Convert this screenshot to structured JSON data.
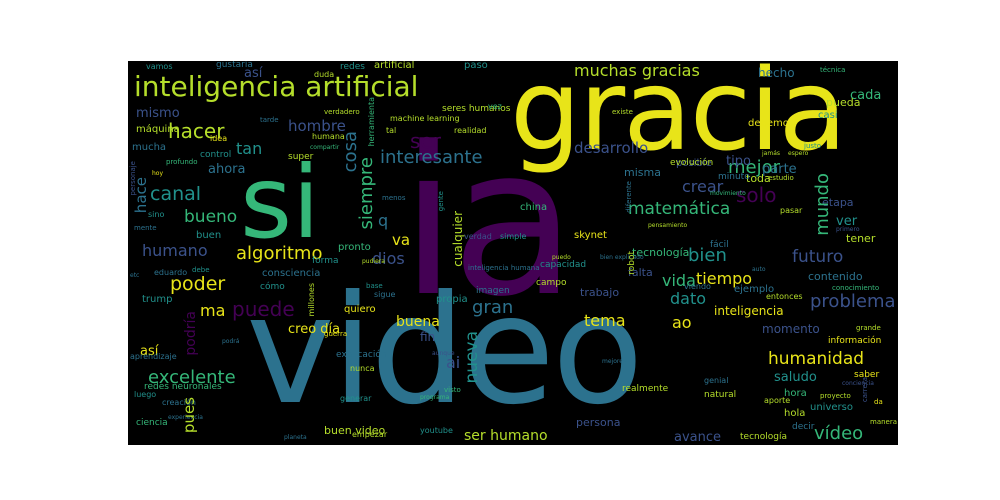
{
  "wordcloud": {
    "background": "#000000",
    "palette": {
      "purple": "#440154",
      "indigo": "#3b528b",
      "teal": "#2c728e",
      "cyan": "#21918c",
      "green": "#35b779",
      "lime": "#5ec962",
      "yellow": "#e8e419",
      "pale": "#b5de2b"
    },
    "words": {
      "ia": "ia",
      "video": "video",
      "gracia": "gracia",
      "si": "si",
      "inteligencia_artificial": "inteligencia artificial",
      "muchas_gracias": "muchas gracias",
      "hacer": "hacer",
      "ser": "ser",
      "interesante": "interesante",
      "desarrollo": "desarrollo",
      "canal": "canal",
      "bueno": "bueno",
      "algoritmo": "algoritmo",
      "dios": "dios",
      "humano": "humano",
      "poder": "poder",
      "puede": "puede",
      "matematica": "matemática",
      "solo": "solo",
      "mejor": "mejor",
      "crear": "crear",
      "mundo": "mundo",
      "futuro": "futuro",
      "bien": "bien",
      "tiempo": "tiempo",
      "vida": "vida",
      "problema": "problema",
      "humanidad": "humanidad",
      "excelente": "excelente",
      "nueva": "nueva",
      "gran": "gran",
      "tema": "tema",
      "ao": "ao",
      "dato": "dato",
      "buena": "buena",
      "video2": "vídeo",
      "saludo": "saludo",
      "avance": "avance",
      "ser_humano": "ser humano",
      "ai": "ai",
      "pues": "pues",
      "podria": "podría",
      "creo_dia": "creo día",
      "ma": "ma",
      "hace": "hace",
      "mismo": "mismo",
      "hombre": "hombre",
      "tan": "tan",
      "cosa": "cosa",
      "siempre": "siempre",
      "ahora": "ahora",
      "va": "va",
      "q": "q",
      "hecho": "hecho",
      "cada": "cada",
      "asi": "así",
      "asi2": "así",
      "tecnologia": "tecnología",
      "tipo": "tipo",
      "parte": "parte",
      "inteligencia": "inteligencia",
      "momento": "momento",
      "contenido": "contenido",
      "trabajo": "trabajo",
      "fin": "fin",
      "persona": "persona",
      "ver": "ver",
      "pueda": "pueda",
      "casi": "casi",
      "debemos": "debemos",
      "toda": "toda",
      "etapa": "etapa",
      "tener": "tener",
      "posible": "posible",
      "misma": "misma",
      "evolucion": "evolución",
      "minuto": "minuto",
      "falta": "falta",
      "facil": "fácil",
      "cualquier": "cualquier",
      "skynet": "skynet",
      "china": "china",
      "verdad": "verdad",
      "simple": "simple",
      "pronto": "pronto",
      "forma": "forma",
      "buen": "buen",
      "consciencia": "consciencia",
      "eduardo": "eduardo",
      "trump": "trump",
      "aprendizaje": "aprendizaje",
      "como": "cómo",
      "quiero": "quiero",
      "sigue": "sigue",
      "imagen": "imagen",
      "propia": "propia",
      "campo": "campo",
      "capacidad": "capacidad",
      "inteligencia_humana": "inteligencia humana",
      "robot": "robot",
      "entonces": "entonces",
      "ejemplo": "ejemplo",
      "hora": "hora",
      "hola": "hola",
      "decir": "decir",
      "universo": "universo",
      "tecnologia2": "tecnología",
      "buen_video": "buen video",
      "youtube": "youtube",
      "empezar": "empezar",
      "generar": "generar",
      "realmente": "realmente",
      "genial": "genial",
      "natural": "natural",
      "aporte": "aporte",
      "proyecto": "proyecto",
      "saber": "saber",
      "informacion": "información",
      "grande": "grande",
      "conocimiento": "conocimiento",
      "mucha": "mucha",
      "maquina": "máquina",
      "control": "control",
      "super": "super",
      "idea": "idea",
      "humana": "humana",
      "seres_humanos": "seres humanos",
      "machine_learning": "machine learning",
      "realidad": "realidad",
      "artificial": "artificial",
      "paso": "paso",
      "vez": "vez",
      "redes": "redes",
      "duda": "duda",
      "gustaria": "gustaría",
      "vamos": "vamos",
      "existe": "existe",
      "justo": "justo",
      "jamas": "jamás",
      "espero": "espero",
      "estudio": "estudio",
      "pasar": "pasar",
      "tecnica": "técnica",
      "explicacion": "explicación",
      "nunca": "nunca",
      "redes_neuronales": "redes neuronales",
      "creacion": "creación",
      "luego": "luego",
      "ciencia": "ciencia",
      "experiencia": "experiencia",
      "sino": "sino",
      "mente": "mente",
      "hoy": "hoy",
      "debe": "debe",
      "etc": "etc",
      "personaje": "personaje",
      "profundo": "profundo",
      "visto": "visto",
      "programa": "programa",
      "movimiento": "movimiento",
      "millones": "millones",
      "guerra": "guerra",
      "mejores": "mejores",
      "viendo": "viendo",
      "pensamiento": "pensamiento",
      "bien_explicado": "bien explicado",
      "base": "base",
      "menos": "menos",
      "tarde": "tarde",
      "verdadero": "verdadero",
      "herramienta": "herramienta",
      "da": "da",
      "manera": "manera",
      "gente": "gente",
      "diferente": "diferente",
      "tal": "tal",
      "primero": "primero",
      "planeta": "planeta",
      "pudiera": "pudiera",
      "compartir": "compartir",
      "auto": "auto",
      "puedo": "puedo",
      "conciencia": "conciencia",
      "carrera": "carrera",
      "aunque": "aunque",
      "necesita": "necesita",
      "podra": "podrá",
      "necesario": "necesario",
      "nuevo": "nuevo",
      "usar": "usar",
      "dice": "dice",
      "mundial": "mundial",
      "quizas": "quizás",
      "casos": "casos",
      "mas": "más",
      "realidad2": "realidad",
      "largo": "largo",
      "inteligente": "inteligente",
      "respecto": "respecto",
      "uso": "uso",
      "sea": "sea",
      "cierto": "cierto",
      "punto": "punto",
      "aun": "aún",
      "claro": "claro",
      "nivel": "nivel",
      "cuenta": "cuenta"
    }
  }
}
